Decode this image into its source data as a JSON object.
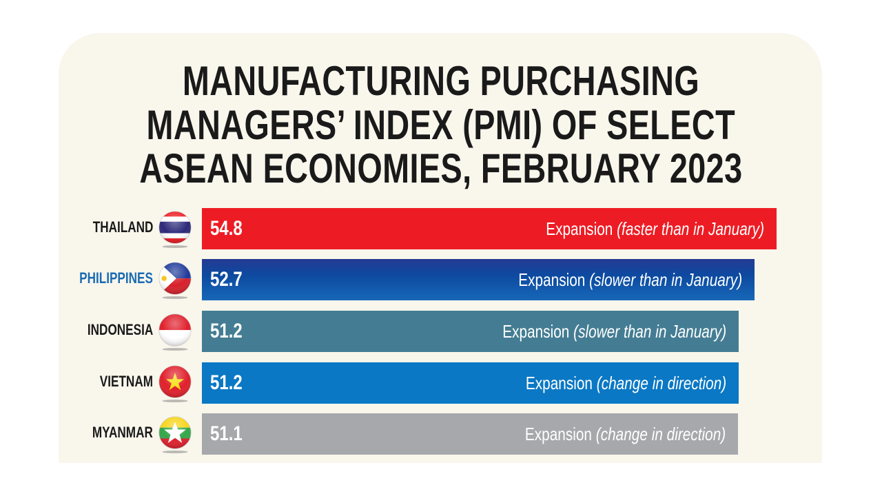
{
  "title_lines": [
    "MANUFACTURING PURCHASING",
    "MANAGERS’ INDEX (PMI) OF SELECT",
    "ASEAN ECONOMIES, FEBRUARY 2023"
  ],
  "chart_data": {
    "type": "bar",
    "orientation": "horizontal",
    "title": "MANUFACTURING PURCHASING MANAGERS’ INDEX (PMI) OF SELECT ASEAN ECONOMIES, FEBRUARY 2023",
    "categories": [
      "THAILAND",
      "PHILIPPINES",
      "INDONESIA",
      "VIETNAM",
      "MYANMAR"
    ],
    "values": [
      54.8,
      52.7,
      51.2,
      51.2,
      51.1
    ],
    "value_labels": [
      "54.8",
      "52.7",
      "51.2",
      "51.2",
      "51.1"
    ],
    "status": [
      "Expansion",
      "Expansion",
      "Expansion",
      "Expansion",
      "Expansion"
    ],
    "notes": [
      "(faster than in January)",
      "(slower than in January)",
      "(slower than in January)",
      "(change in direction)",
      "(change in direction)"
    ],
    "bar_colors": [
      "#ed1c24",
      "#1a4fa0",
      "#447d93",
      "#0a78c4",
      "#a7a8ac"
    ],
    "label_colors": [
      "#1a1a1a",
      "#1a6bb3",
      "#1a1a1a",
      "#1a1a1a",
      "#1a1a1a"
    ],
    "flags": [
      "thailand-flag-icon",
      "philippines-flag-icon",
      "indonesia-flag-icon",
      "vietnam-flag-icon",
      "myanmar-flag-icon"
    ],
    "xlim": [
      0,
      55
    ],
    "grid": false,
    "legend": "none"
  }
}
